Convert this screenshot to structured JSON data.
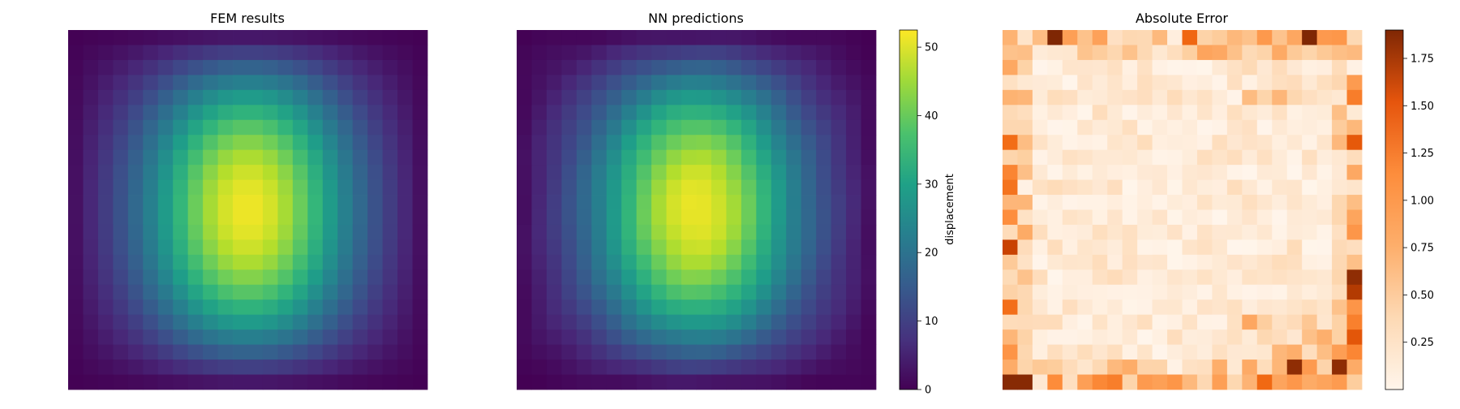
{
  "figure": {
    "panels": [
      {
        "title": "FEM results"
      },
      {
        "title": "NN predictions"
      },
      {
        "title": "Absolute Error"
      }
    ],
    "colorbars": [
      {
        "label": "displacement",
        "ticks": [
          "0",
          "10",
          "20",
          "30",
          "40",
          "50"
        ]
      },
      {
        "label": "",
        "ticks": [
          "0.25",
          "0.50",
          "0.75",
          "1.00",
          "1.25",
          "1.50",
          "1.75"
        ]
      }
    ]
  },
  "chart_data": [
    {
      "type": "heatmap",
      "title": "FEM results",
      "grid_size": [
        24,
        24
      ],
      "colormap": "viridis",
      "value_range": [
        0,
        52.5
      ],
      "field_description": "Smooth displacement field, maximum ~52 near the center, decaying to ~0 at the edges",
      "axes": "off"
    },
    {
      "type": "heatmap",
      "title": "NN predictions",
      "grid_size": [
        24,
        24
      ],
      "colormap": "viridis",
      "value_range": [
        0,
        52.5
      ],
      "colorbar_label": "displacement",
      "colorbar_ticks": [
        0,
        10,
        20,
        30,
        40,
        50
      ],
      "axes": "off"
    },
    {
      "type": "heatmap",
      "title": "Absolute Error",
      "grid_size": [
        24,
        24
      ],
      "colormap": "Oranges",
      "value_range": [
        0,
        1.9
      ],
      "colorbar_ticks": [
        0.25,
        0.5,
        0.75,
        1.0,
        1.25,
        1.5,
        1.75
      ],
      "highlights": [
        {
          "row": 0,
          "col": 3,
          "value": 1.9
        },
        {
          "row": 0,
          "col": 20,
          "value": 1.9
        },
        {
          "row": 23,
          "col": 0,
          "value": 1.85
        },
        {
          "row": 23,
          "col": 1,
          "value": 1.85
        },
        {
          "row": 22,
          "col": 19,
          "value": 1.8
        },
        {
          "row": 22,
          "col": 22,
          "value": 1.8
        },
        {
          "row": 16,
          "col": 23,
          "value": 1.8
        },
        {
          "row": 17,
          "col": 23,
          "value": 1.6
        },
        {
          "row": 14,
          "col": 0,
          "value": 1.5
        },
        {
          "row": 7,
          "col": 23,
          "value": 1.3
        }
      ],
      "axes": "off"
    }
  ]
}
